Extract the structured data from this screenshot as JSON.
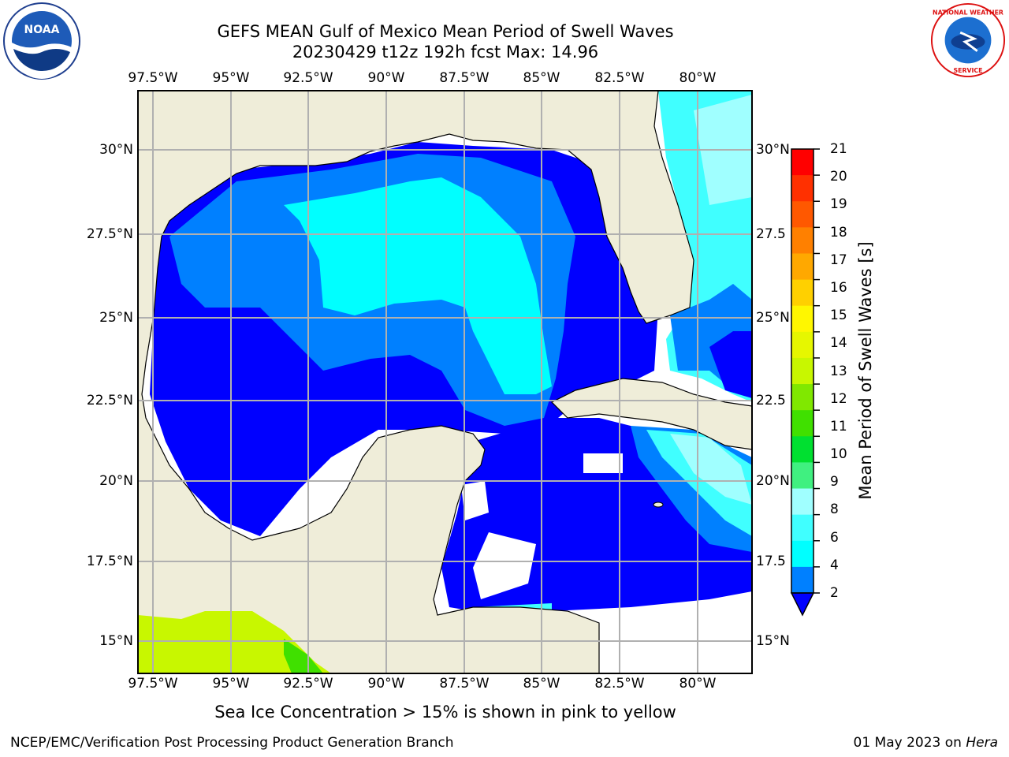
{
  "header": {
    "title_line1": "GEFS MEAN Gulf of Mexico Mean Period of Swell Waves",
    "title_line2": "20230429 t12z 192h fcst   Max: 14.96"
  },
  "logos": {
    "left": "noaa-logo",
    "right": "national-weather-service-logo"
  },
  "map": {
    "lon_labels": [
      "97.5°W",
      "95°W",
      "92.5°W",
      "90°W",
      "87.5°W",
      "85°W",
      "82.5°W",
      "80°W"
    ],
    "lat_labels": [
      "30°N",
      "27.5°N",
      "25°N",
      "22.5°N",
      "20°N",
      "17.5°N",
      "15°N"
    ],
    "lat_labels_right": [
      "30°N",
      "27.5",
      "25°N",
      "22.5",
      "20°N",
      "17.5",
      "15°N"
    ],
    "colors": {
      "land": "#efedd9",
      "ocean_undefined": "#ffffff",
      "grid": "#b0b0b0"
    }
  },
  "colorbar": {
    "title": "Mean Period of Swell Waves [s]",
    "ticks": [
      "21",
      "20",
      "19",
      "18",
      "17",
      "16",
      "15",
      "14",
      "13",
      "12",
      "11",
      "10",
      "9",
      "8",
      "6",
      "4",
      "2"
    ],
    "colors": [
      "#ff0000",
      "#ff3000",
      "#ff5800",
      "#ff8000",
      "#ffa800",
      "#ffd000",
      "#fff700",
      "#e6f700",
      "#c8f700",
      "#80e800",
      "#40e000",
      "#00e030",
      "#40f080",
      "#a0ffff",
      "#40ffff",
      "#00ffff",
      "#0080ff"
    ]
  },
  "note": "Sea Ice Concentration > 15% is shown in pink to yellow",
  "footer": {
    "left": "NCEP/EMC/Verification Post Processing Product Generation Branch",
    "date": "01 May 2023 on",
    "machine": "Hera"
  }
}
